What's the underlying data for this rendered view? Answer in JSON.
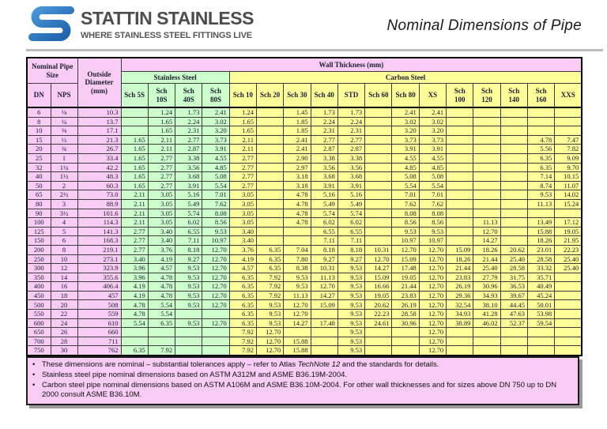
{
  "header": {
    "logo_title": "STATTIN STAINLESS",
    "logo_tagline": "WHERE STAINLESS STEEL FITTINGS LIVE",
    "page_title": "Nominal Dimensions of Pipe"
  },
  "colors": {
    "pink": "#f8ccf5",
    "stainless_green": "#ccffcc",
    "carbon_yellow": "#ffff99",
    "logo_blue": "#2e74b5",
    "logo_gray": "#4d4d4d"
  },
  "table": {
    "group_headers": {
      "nominal_pipe_size": "Nominal Pipe Size",
      "outside_diameter": "Outside Diameter (mm)",
      "wall_thickness": "Wall Thickness (mm)",
      "stainless_steel": "Stainless Steel",
      "carbon_steel": "Carbon Steel"
    },
    "dn_label": "DN",
    "nps_label": "NPS",
    "sched_columns": [
      "Sch 5S",
      "Sch 10S",
      "Sch 40S",
      "Sch 80S",
      "Sch 10",
      "Sch 20",
      "Sch 30",
      "Sch 40",
      "STD",
      "Sch 60",
      "Sch 80",
      "XS",
      "Sch 100",
      "Sch 120",
      "Sch 140",
      "Sch 160",
      "XXS"
    ],
    "rows": [
      {
        "dn": "6",
        "nps": "⅛",
        "od": "10.3",
        "t": [
          "",
          "1.24",
          "1.73",
          "2.41",
          "1.24",
          "",
          "1.45",
          "1.73",
          "1.73",
          "",
          "2.41",
          "2.41",
          "",
          "",
          "",
          "",
          ""
        ]
      },
      {
        "dn": "8",
        "nps": "¼",
        "od": "13.7",
        "t": [
          "",
          "1.65",
          "2.24",
          "3.02",
          "1.65",
          "",
          "1.85",
          "2.24",
          "2.24",
          "",
          "3.02",
          "3.02",
          "",
          "",
          "",
          "",
          ""
        ]
      },
      {
        "dn": "10",
        "nps": "⅜",
        "od": "17.1",
        "t": [
          "",
          "1.65",
          "2.31",
          "3.20",
          "1.65",
          "",
          "1.85",
          "2.31",
          "2.31",
          "",
          "3.20",
          "3.20",
          "",
          "",
          "",
          "",
          ""
        ]
      },
      {
        "dn": "15",
        "nps": "½",
        "od": "21.3",
        "t": [
          "1.65",
          "2.11",
          "2.77",
          "3.73",
          "2.11",
          "",
          "2.41",
          "2.77",
          "2.77",
          "",
          "3.73",
          "3.73",
          "",
          "",
          "",
          "4.78",
          "7.47"
        ]
      },
      {
        "dn": "20",
        "nps": "¾",
        "od": "26.7",
        "t": [
          "1.65",
          "2.11",
          "2.87",
          "3.91",
          "2.11",
          "",
          "2.41",
          "2.87",
          "2.87",
          "",
          "3.91",
          "3.91",
          "",
          "",
          "",
          "5.56",
          "7.82"
        ]
      },
      {
        "dn": "25",
        "nps": "1",
        "od": "33.4",
        "t": [
          "1.65",
          "2.77",
          "3.38",
          "4.55",
          "2.77",
          "",
          "2.90",
          "3.38",
          "3.38",
          "",
          "4.55",
          "4.55",
          "",
          "",
          "",
          "6.35",
          "9.09"
        ]
      },
      {
        "dn": "32",
        "nps": "1¼",
        "od": "42.2",
        "t": [
          "1.65",
          "2.77",
          "3.56",
          "4.85",
          "2.77",
          "",
          "2.97",
          "3.56",
          "3.56",
          "",
          "4.85",
          "4.85",
          "",
          "",
          "",
          "6.35",
          "9.70"
        ]
      },
      {
        "dn": "40",
        "nps": "1½",
        "od": "48.3",
        "t": [
          "1.65",
          "2.77",
          "3.68",
          "5.08",
          "2.77",
          "",
          "3.18",
          "3.68",
          "3.68",
          "",
          "5.08",
          "5.08",
          "",
          "",
          "",
          "7.14",
          "10.15"
        ]
      },
      {
        "dn": "50",
        "nps": "2",
        "od": "60.3",
        "t": [
          "1.65",
          "2.77",
          "3.91",
          "5.54",
          "2.77",
          "",
          "3.18",
          "3.91",
          "3.91",
          "",
          "5.54",
          "5.54",
          "",
          "",
          "",
          "8.74",
          "11.07"
        ]
      },
      {
        "dn": "65",
        "nps": "2½",
        "od": "73.0",
        "t": [
          "2.11",
          "3.05",
          "5.16",
          "7.01",
          "3.05",
          "",
          "4.78",
          "5.16",
          "5.16",
          "",
          "7.01",
          "7.01",
          "",
          "",
          "",
          "9.53",
          "14.02"
        ]
      },
      {
        "dn": "80",
        "nps": "3",
        "od": "88.9",
        "t": [
          "2.11",
          "3.05",
          "5.49",
          "7.62",
          "3.05",
          "",
          "4.78",
          "5.49",
          "5.49",
          "",
          "7.62",
          "7.62",
          "",
          "",
          "",
          "11.13",
          "15.24"
        ]
      },
      {
        "dn": "90",
        "nps": "3½",
        "od": "101.6",
        "t": [
          "2.11",
          "3.05",
          "5.74",
          "8.08",
          "3.05",
          "",
          "4.78",
          "5.74",
          "5.74",
          "",
          "8.08",
          "8.08",
          "",
          "",
          "",
          "",
          ""
        ]
      },
      {
        "dn": "100",
        "nps": "4",
        "od": "114.3",
        "t": [
          "2.11",
          "3.05",
          "6.02",
          "8.56",
          "3.05",
          "",
          "4.78",
          "6.02",
          "6.02",
          "",
          "8.56",
          "8.56",
          "",
          "11.13",
          "",
          "13.49",
          "17.12"
        ]
      },
      {
        "dn": "125",
        "nps": "5",
        "od": "141.3",
        "t": [
          "2.77",
          "3.40",
          "6.55",
          "9.53",
          "3.40",
          "",
          "",
          "6.55",
          "6.55",
          "",
          "9.53",
          "9.53",
          "",
          "12.70",
          "",
          "15.88",
          "19.05"
        ]
      },
      {
        "dn": "150",
        "nps": "6",
        "od": "168.3",
        "t": [
          "2.77",
          "3.40",
          "7.11",
          "10.97",
          "3.40",
          "",
          "",
          "7.11",
          "7.11",
          "",
          "10.97",
          "10.97",
          "",
          "14.27",
          "",
          "18.26",
          "21.95"
        ]
      },
      {
        "dn": "200",
        "nps": "8",
        "od": "219.1",
        "t": [
          "2.77",
          "3.76",
          "8.18",
          "12.70",
          "3.76",
          "6.35",
          "7.04",
          "8.18",
          "8.18",
          "10.31",
          "12.70",
          "12.70",
          "15.09",
          "18.26",
          "20.62",
          "23.01",
          "22.23"
        ]
      },
      {
        "dn": "250",
        "nps": "10",
        "od": "273.1",
        "t": [
          "3.40",
          "4.19",
          "9.27",
          "12.70",
          "4.19",
          "6.35",
          "7.80",
          "9.27",
          "9.27",
          "12.70",
          "15.09",
          "12.70",
          "18.26",
          "21.44",
          "25.40",
          "28.58",
          "25.40"
        ]
      },
      {
        "dn": "300",
        "nps": "12",
        "od": "323.9",
        "t": [
          "3.96",
          "4.57",
          "9.53",
          "12.70",
          "4.57",
          "6.35",
          "8.38",
          "10.31",
          "9.53",
          "14.27",
          "17.48",
          "12.70",
          "21.44",
          "25.40",
          "28.58",
          "33.32",
          "25.40"
        ]
      },
      {
        "dn": "350",
        "nps": "14",
        "od": "355.6",
        "t": [
          "3.96",
          "4.78",
          "9.53",
          "12.70",
          "6.35",
          "7.92",
          "9.53",
          "11.13",
          "9.53",
          "15.09",
          "19.05",
          "12.70",
          "23.83",
          "27.79",
          "31.75",
          "35.71",
          ""
        ]
      },
      {
        "dn": "400",
        "nps": "16",
        "od": "406.4",
        "t": [
          "4.19",
          "4.78",
          "9.53",
          "12.70",
          "6.35",
          "7.92",
          "9.53",
          "12.70",
          "9.53",
          "16.66",
          "21.44",
          "12.70",
          "26.19",
          "30.96",
          "36.53",
          "40.49",
          ""
        ]
      },
      {
        "dn": "450",
        "nps": "18",
        "od": "457",
        "t": [
          "4.19",
          "4.78",
          "9.53",
          "12.70",
          "6.35",
          "7.92",
          "11.13",
          "14.27",
          "9.53",
          "19.05",
          "23.83",
          "12.70",
          "29.36",
          "34.93",
          "39.67",
          "45.24",
          ""
        ]
      },
      {
        "dn": "500",
        "nps": "20",
        "od": "508",
        "t": [
          "4.78",
          "5.54",
          "9.53",
          "12.70",
          "6.35",
          "9.53",
          "12.70",
          "15.09",
          "9.53",
          "20.62",
          "26.19",
          "12.70",
          "32.54",
          "38.10",
          "44.45",
          "50.01",
          ""
        ]
      },
      {
        "dn": "550",
        "nps": "22",
        "od": "559",
        "t": [
          "4.78",
          "5.54",
          "",
          "",
          "6.35",
          "9.53",
          "12.70",
          "",
          "9.53",
          "22.23",
          "28.58",
          "12.70",
          "34.93",
          "41.28",
          "47.63",
          "53.98",
          ""
        ]
      },
      {
        "dn": "600",
        "nps": "24",
        "od": "610",
        "t": [
          "5.54",
          "6.35",
          "9.53",
          "12.70",
          "6.35",
          "9.53",
          "14.27",
          "17.48",
          "9.53",
          "24.61",
          "30.96",
          "12.70",
          "38.89",
          "46.02",
          "52.37",
          "59.54",
          ""
        ]
      },
      {
        "dn": "650",
        "nps": "26",
        "od": "660",
        "t": [
          "",
          "",
          "",
          "",
          "7.92",
          "12.70",
          "",
          "",
          "9.53",
          "",
          "",
          "12.70",
          "",
          "",
          "",
          "",
          ""
        ]
      },
      {
        "dn": "700",
        "nps": "28",
        "od": "711",
        "t": [
          "",
          "",
          "",
          "",
          "7.92",
          "12.70",
          "15.88",
          "",
          "9.53",
          "",
          "",
          "12.70",
          "",
          "",
          "",
          "",
          ""
        ]
      },
      {
        "dn": "750",
        "nps": "30",
        "od": "762",
        "t": [
          "6.35",
          "7.92",
          "",
          "",
          "7.92",
          "12.70",
          "15.88",
          "",
          "9.53",
          "",
          "",
          "12.70",
          "",
          "",
          "",
          "",
          ""
        ]
      }
    ]
  },
  "notes": [
    {
      "prefix": "These dimensions are nominal – substantial tolerances apply – refer to Atlas ",
      "italic": "TechNote 12",
      "suffix": " and the standards for details."
    },
    {
      "text": "Stainless steel pipe nominal dimensions based on ASTM A312M and ASME B36.19M-2004."
    },
    {
      "text": "Carbon steel pipe nominal dimensions based on ASTM A106M and ASME B36.10M-2004. For other wall thicknesses and for sizes above DN 750 up to DN 2000 consult ASME B36.10M."
    }
  ]
}
